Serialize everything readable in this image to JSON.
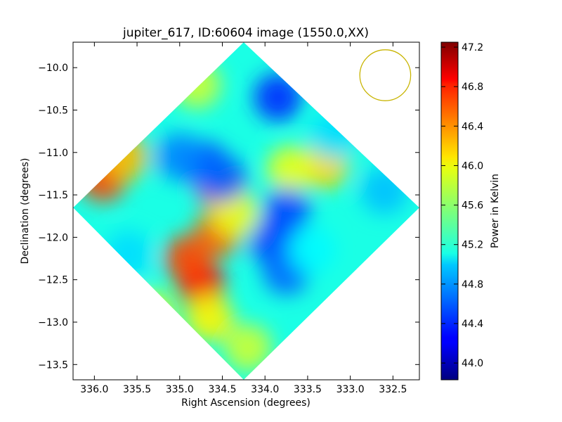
{
  "chart_data": {
    "type": "heatmap",
    "title": "jupiter_617, ID:60604 image (1550.0,XX)",
    "xlabel": "Right Ascension (degrees)",
    "ylabel": "Declination (degrees)",
    "xlim": [
      336.25,
      332.19
    ],
    "ylim": [
      -13.68,
      -9.7
    ],
    "x_ticks": [
      336.0,
      335.5,
      335.0,
      334.5,
      334.0,
      333.5,
      333.0,
      332.5
    ],
    "x_tick_labels": [
      "336.0",
      "335.5",
      "335.0",
      "334.5",
      "334.0",
      "333.5",
      "333.0",
      "332.5"
    ],
    "y_ticks": [
      -10.0,
      -10.5,
      -11.0,
      -11.5,
      -12.0,
      -12.5,
      -13.0,
      -13.5
    ],
    "y_tick_labels": [
      "−10.0",
      "−10.5",
      "−11.0",
      "−11.5",
      "−12.0",
      "−12.5",
      "−13.0",
      "−13.5"
    ],
    "footprint_corners": [
      [
        334.25,
        -9.7
      ],
      [
        332.19,
        -11.65
      ],
      [
        334.25,
        -13.68
      ],
      [
        336.25,
        -11.65
      ]
    ],
    "beam_circle": {
      "center": [
        332.59,
        -10.09
      ],
      "radius_deg": 0.3,
      "color": "#c8b400"
    },
    "colorbar": {
      "label": "Power in Kelvin",
      "range": [
        43.83,
        47.25
      ],
      "ticks": [
        44.0,
        44.4,
        44.8,
        45.2,
        45.6,
        46.0,
        46.4,
        46.8,
        47.2
      ],
      "tick_labels": [
        "44.0",
        "44.4",
        "44.8",
        "45.2",
        "45.6",
        "46.0",
        "46.4",
        "46.8",
        "47.2"
      ],
      "colormap": "jet"
    },
    "background_value": 45.2,
    "features": [
      {
        "ra": 334.75,
        "dec": -12.55,
        "value": 46.8
      },
      {
        "ra": 334.9,
        "dec": -12.25,
        "value": 46.6
      },
      {
        "ra": 334.65,
        "dec": -12.95,
        "value": 46.0
      },
      {
        "ra": 335.35,
        "dec": -12.9,
        "value": 45.9
      },
      {
        "ra": 334.2,
        "dec": -13.3,
        "value": 45.8
      },
      {
        "ra": 335.9,
        "dec": -11.3,
        "value": 46.6
      },
      {
        "ra": 335.65,
        "dec": -11.05,
        "value": 46.2
      },
      {
        "ra": 334.8,
        "dec": -10.2,
        "value": 45.8
      },
      {
        "ra": 333.3,
        "dec": -11.15,
        "value": 46.1
      },
      {
        "ra": 333.7,
        "dec": -11.2,
        "value": 45.9
      },
      {
        "ra": 334.5,
        "dec": -11.45,
        "value": 46.6
      },
      {
        "ra": 334.55,
        "dec": -11.95,
        "value": 46.5
      },
      {
        "ra": 334.35,
        "dec": -11.72,
        "value": 45.9
      },
      {
        "ra": 334.7,
        "dec": -11.15,
        "value": 44.5
      },
      {
        "ra": 334.5,
        "dec": -11.3,
        "value": 44.6
      },
      {
        "ra": 335.0,
        "dec": -11.05,
        "value": 44.7
      },
      {
        "ra": 333.85,
        "dec": -10.35,
        "value": 44.4
      },
      {
        "ra": 333.75,
        "dec": -11.7,
        "value": 44.5
      },
      {
        "ra": 333.9,
        "dec": -12.05,
        "value": 44.5
      },
      {
        "ra": 333.75,
        "dec": -12.4,
        "value": 44.6
      },
      {
        "ra": 333.2,
        "dec": -10.8,
        "value": 45.0
      },
      {
        "ra": 332.6,
        "dec": -11.45,
        "value": 44.9
      },
      {
        "ra": 335.6,
        "dec": -12.2,
        "value": 45.0
      },
      {
        "ra": 333.45,
        "dec": -12.15,
        "value": 45.1
      }
    ]
  }
}
